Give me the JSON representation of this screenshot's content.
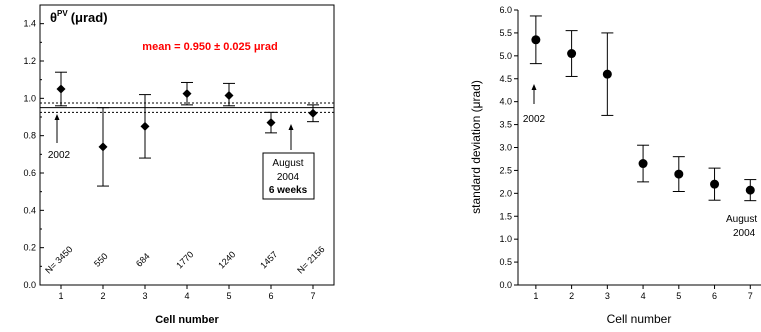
{
  "chart_data": [
    {
      "type": "scatter",
      "title": "θPV (μrad)",
      "title_symbol": "θ",
      "title_superscript": "PV",
      "title_unit": "(μrad)",
      "xlabel": "Cell number",
      "ylabel": "",
      "xlim": [
        0.5,
        7.5
      ],
      "ylim": [
        0,
        1.5
      ],
      "xticks": [
        1,
        2,
        3,
        4,
        5,
        6,
        7
      ],
      "yticks": [
        0.0,
        0.2,
        0.4,
        0.6,
        0.8,
        1.0,
        1.2,
        1.4
      ],
      "ytick_labels": [
        "0.0",
        "0.2",
        "0.4",
        "0.6",
        "0.8",
        "1.0",
        "1.2",
        "1.4"
      ],
      "x": [
        1,
        2,
        3,
        4,
        5,
        6,
        7
      ],
      "y": [
        1.05,
        0.74,
        0.85,
        1.025,
        1.015,
        0.87,
        0.92
      ],
      "err_upper": [
        0.09,
        0.21,
        0.17,
        0.06,
        0.065,
        0.055,
        0.045
      ],
      "err_lower": [
        0.09,
        0.21,
        0.17,
        0.06,
        0.055,
        0.055,
        0.045
      ],
      "mean_line": 0.95,
      "band": [
        0.925,
        0.975
      ],
      "mean_text": "mean = 0.950 ± 0.025 μrad",
      "counts": [
        "N= 3450",
        "550",
        "684",
        "1770",
        "1240",
        "1457",
        "N= 2156"
      ],
      "annotations": {
        "first": "2002",
        "last_lines": [
          "August",
          "2004"
        ],
        "last_bold": "6 weeks"
      },
      "marker": "diamond",
      "colors": {
        "mean_text": "#ff0000",
        "data": "#000000"
      }
    },
    {
      "type": "scatter",
      "title": "",
      "xlabel": "Cell number",
      "ylabel": "standard deviation (μrad)",
      "xlim": [
        0.5,
        7.3
      ],
      "ylim": [
        0,
        6.0
      ],
      "xticks": [
        1,
        2,
        3,
        4,
        5,
        6,
        7
      ],
      "yticks": [
        0.0,
        0.5,
        1.0,
        1.5,
        2.0,
        2.5,
        3.0,
        3.5,
        4.0,
        4.5,
        5.0,
        5.5,
        6.0
      ],
      "ytick_labels": [
        "0.0",
        "0.5",
        "1.0",
        "1.5",
        "2.0",
        "2.5",
        "3.0",
        "3.5",
        "4.0",
        "4.5",
        "5.0",
        "5.5",
        "6.0"
      ],
      "x": [
        1,
        2,
        3,
        4,
        5,
        6,
        7
      ],
      "y": [
        5.35,
        5.05,
        4.6,
        2.65,
        2.42,
        2.2,
        2.07
      ],
      "err_upper": [
        0.52,
        0.5,
        0.9,
        0.4,
        0.38,
        0.35,
        0.23
      ],
      "err_lower": [
        0.52,
        0.5,
        0.9,
        0.4,
        0.38,
        0.35,
        0.23
      ],
      "annotations": {
        "first": "2002",
        "last_lines": [
          "August",
          "2004"
        ]
      },
      "marker": "circle",
      "colors": {
        "data": "#000000"
      }
    }
  ]
}
